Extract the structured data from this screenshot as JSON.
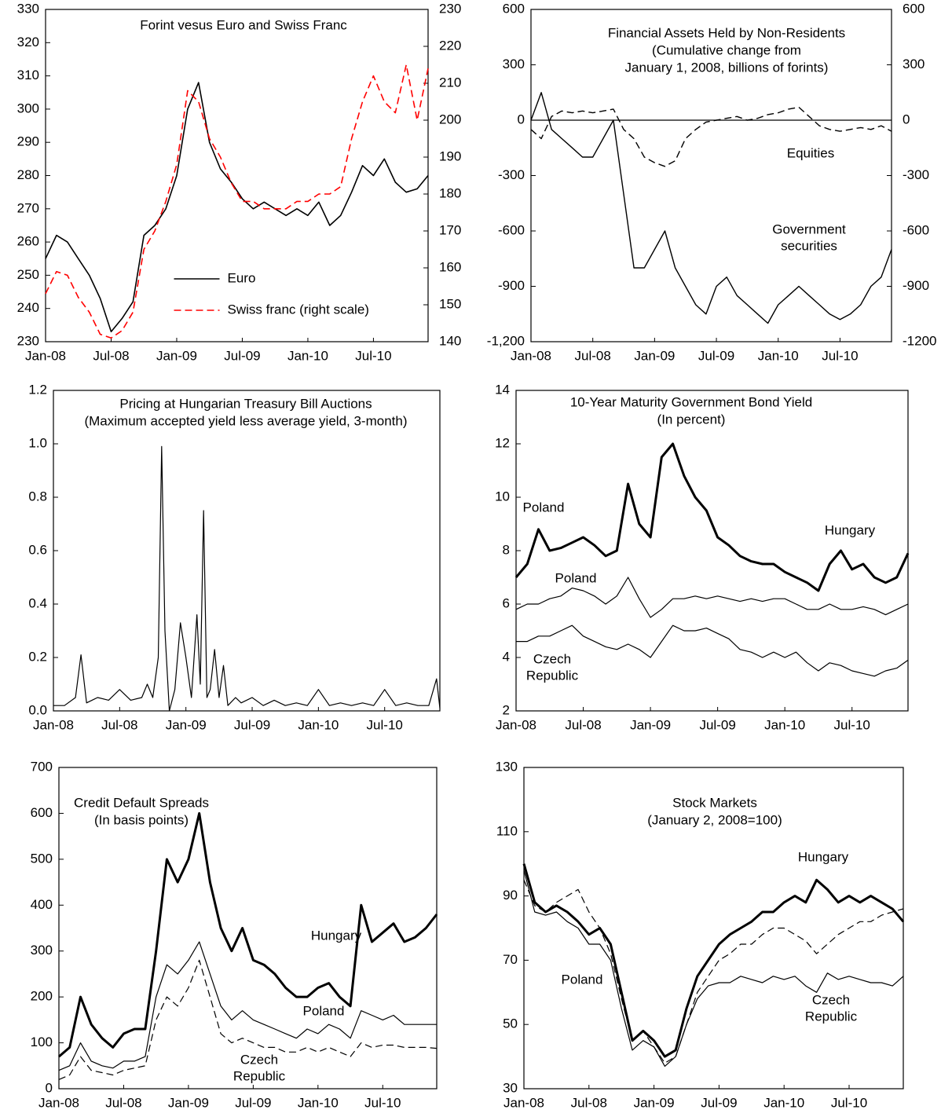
{
  "chart_data": [
    {
      "type": "line",
      "title": "Forint vesus Euro and Swiss Franc",
      "x": [
        0,
        1,
        2,
        3,
        4,
        5,
        6,
        7,
        8,
        9,
        10,
        11,
        12,
        13,
        14,
        15,
        16,
        17,
        18,
        19,
        20,
        21,
        22,
        23,
        24,
        25,
        26,
        27,
        28,
        29,
        30,
        31,
        32,
        33,
        34,
        35
      ],
      "xlim": [
        0,
        35
      ],
      "xticks": [
        {
          "value": 0,
          "label": "Jan-08"
        },
        {
          "value": 6,
          "label": "Jul-08"
        },
        {
          "value": 12,
          "label": "Jan-09"
        },
        {
          "value": 18,
          "label": "Jul-09"
        },
        {
          "value": 24,
          "label": "Jan-10"
        },
        {
          "value": 30,
          "label": "Jul-10"
        }
      ],
      "ylim": [
        230,
        330
      ],
      "yticks": [
        230,
        240,
        250,
        260,
        270,
        280,
        290,
        300,
        310,
        320,
        330
      ],
      "y2lim": [
        140,
        230
      ],
      "y2ticks": [
        140,
        150,
        160,
        170,
        180,
        190,
        200,
        210,
        220,
        230
      ],
      "legend": "lower center",
      "series": [
        {
          "name": "Euro",
          "color": "#000000",
          "width": 1.6,
          "dashed": false,
          "values": [
            255,
            262,
            260,
            255,
            250,
            243,
            233,
            237,
            242,
            262,
            265,
            270,
            280,
            300,
            308,
            290,
            282,
            278,
            273,
            270,
            272,
            270,
            268,
            270,
            268,
            272,
            265,
            268,
            275,
            283,
            280,
            285,
            278,
            275,
            276,
            280
          ]
        },
        {
          "name": "Swiss franc (right scale)",
          "color": "#ff0000",
          "width": 1.6,
          "dashed": true,
          "axis": "y2",
          "values": [
            153,
            159,
            158,
            152,
            148,
            142,
            141,
            143,
            148,
            165,
            170,
            178,
            188,
            208,
            205,
            195,
            190,
            183,
            178,
            178,
            176,
            176,
            176,
            178,
            178,
            180,
            180,
            182,
            195,
            205,
            212,
            205,
            202,
            215,
            200,
            214
          ]
        }
      ]
    },
    {
      "type": "line",
      "title": "Financial Assets Held by Non-Residents",
      "subtitle": [
        "(Cumulative change from",
        "January 1, 2008, billions of forints)"
      ],
      "x": [
        0,
        1,
        2,
        3,
        4,
        5,
        6,
        7,
        8,
        9,
        10,
        11,
        12,
        13,
        14,
        15,
        16,
        17,
        18,
        19,
        20,
        21,
        22,
        23,
        24,
        25,
        26,
        27,
        28,
        29,
        30,
        31,
        32,
        33,
        34,
        35
      ],
      "xlim": [
        0,
        35
      ],
      "xticks": [
        {
          "value": 0,
          "label": "Jan-08"
        },
        {
          "value": 6,
          "label": "Jul-08"
        },
        {
          "value": 12,
          "label": "Jan-09"
        },
        {
          "value": 18,
          "label": "Jul-09"
        },
        {
          "value": 24,
          "label": "Jan-10"
        },
        {
          "value": 30,
          "label": "Jul-10"
        }
      ],
      "ylim": [
        -1200,
        600
      ],
      "yticks": [
        {
          "value": -1200,
          "label": "-1,200"
        },
        -900,
        -600,
        -300,
        0,
        300,
        600
      ],
      "y2lim": [
        -1200,
        600
      ],
      "y2ticks": [
        -1200,
        -900,
        -600,
        -300,
        0,
        300,
        600
      ],
      "zero_line": true,
      "annotations": [
        [
          "Equities"
        ],
        [
          "Government",
          "securities"
        ]
      ],
      "series": [
        {
          "color": "#000000",
          "width": 1.4,
          "dashed": true,
          "values": [
            -50,
            -100,
            20,
            50,
            40,
            50,
            40,
            50,
            60,
            -50,
            -100,
            -200,
            -230,
            -250,
            -220,
            -100,
            -50,
            -10,
            0,
            10,
            20,
            0,
            10,
            30,
            40,
            60,
            70,
            20,
            -30,
            -50,
            -60,
            -50,
            -40,
            -50,
            -30,
            -60
          ]
        },
        {
          "color": "#000000",
          "width": 1.4,
          "dashed": false,
          "values": [
            0,
            150,
            -50,
            -100,
            -150,
            -200,
            -200,
            -100,
            0,
            -400,
            -800,
            -800,
            -700,
            -600,
            -800,
            -900,
            -1000,
            -1050,
            -900,
            -850,
            -950,
            -1000,
            -1050,
            -1100,
            -1000,
            -950,
            -900,
            -950,
            -1000,
            -1050,
            -1080,
            -1050,
            -1000,
            -900,
            -850,
            -700
          ]
        }
      ]
    },
    {
      "type": "line",
      "title": "Pricing at Hungarian Treasury Bill Auctions",
      "subtitle": [
        "(Maximum accepted yield less average yield, 3-month)"
      ],
      "x": [
        0,
        1,
        2,
        2.5,
        3,
        4,
        5,
        6,
        7,
        8,
        8.5,
        9,
        9.5,
        9.8,
        10.1,
        10.5,
        11,
        11.5,
        12,
        12.5,
        13,
        13.3,
        13.6,
        13.9,
        14.2,
        14.6,
        15,
        15.4,
        15.8,
        16.5,
        17,
        18,
        19,
        20,
        21,
        22,
        23,
        24,
        25,
        26,
        27,
        28,
        29,
        30,
        31,
        32,
        33,
        34,
        34.7,
        35
      ],
      "xlim": [
        0,
        35
      ],
      "xticks": [
        {
          "value": 0,
          "label": "Jan-08"
        },
        {
          "value": 6,
          "label": "Jul-08"
        },
        {
          "value": 12,
          "label": "Jan-09"
        },
        {
          "value": 18,
          "label": "Jul-09"
        },
        {
          "value": 24,
          "label": "Jan-10"
        },
        {
          "value": 30,
          "label": "Jul-10"
        }
      ],
      "ylim": [
        0,
        1.2
      ],
      "yticks": [
        {
          "value": 0,
          "label": "0.0"
        },
        0.2,
        0.4,
        0.6,
        0.8,
        {
          "value": 1,
          "label": "1.0"
        },
        1.2
      ],
      "series": [
        {
          "color": "#000000",
          "width": 1.2,
          "dashed": false,
          "values": [
            0.02,
            0.02,
            0.05,
            0.21,
            0.03,
            0.05,
            0.04,
            0.08,
            0.04,
            0.05,
            0.1,
            0.05,
            0.2,
            0.99,
            0.3,
            0.0,
            0.08,
            0.33,
            0.2,
            0.05,
            0.36,
            0.1,
            0.75,
            0.05,
            0.08,
            0.23,
            0.05,
            0.17,
            0.02,
            0.05,
            0.03,
            0.05,
            0.02,
            0.04,
            0.02,
            0.03,
            0.02,
            0.08,
            0.02,
            0.03,
            0.02,
            0.03,
            0.02,
            0.08,
            0.02,
            0.03,
            0.02,
            0.02,
            0.12,
            0.01
          ]
        }
      ]
    },
    {
      "type": "line",
      "title": "10-Year Maturity Government Bond Yield",
      "subtitle": [
        "(In percent)"
      ],
      "x": [
        0,
        1,
        2,
        3,
        4,
        5,
        6,
        7,
        8,
        9,
        10,
        11,
        12,
        13,
        14,
        15,
        16,
        17,
        18,
        19,
        20,
        21,
        22,
        23,
        24,
        25,
        26,
        27,
        28,
        29,
        30,
        31,
        32,
        33,
        34,
        35
      ],
      "xlim": [
        0,
        35
      ],
      "xticks": [
        {
          "value": 0,
          "label": "Jan-08"
        },
        {
          "value": 6,
          "label": "Jul-08"
        },
        {
          "value": 12,
          "label": "Jan-09"
        },
        {
          "value": 18,
          "label": "Jul-09"
        },
        {
          "value": 24,
          "label": "Jan-10"
        },
        {
          "value": 30,
          "label": "Jul-10"
        }
      ],
      "ylim": [
        2,
        14
      ],
      "yticks": [
        2,
        4,
        6,
        8,
        10,
        12,
        14
      ],
      "annotations": [
        [
          "Poland"
        ],
        [
          "Hungary"
        ],
        [
          "Poland"
        ],
        [
          "Czech",
          "Republic"
        ]
      ],
      "series": [
        {
          "color": "#000000",
          "width": 3,
          "dashed": false,
          "values": [
            7.0,
            7.5,
            8.8,
            8.0,
            8.1,
            8.3,
            8.5,
            8.2,
            7.8,
            8.0,
            10.5,
            9.0,
            8.5,
            11.5,
            12.0,
            10.8,
            10.0,
            9.5,
            8.5,
            8.2,
            7.8,
            7.6,
            7.5,
            7.5,
            7.2,
            7.0,
            6.8,
            6.5,
            7.5,
            8.0,
            7.3,
            7.5,
            7.0,
            6.8,
            7.0,
            7.9
          ]
        },
        {
          "color": "#000000",
          "width": 1.2,
          "dashed": false,
          "values": [
            5.8,
            6.0,
            6.0,
            6.2,
            6.3,
            6.6,
            6.5,
            6.3,
            6.0,
            6.3,
            7.0,
            6.2,
            5.5,
            5.8,
            6.2,
            6.2,
            6.3,
            6.2,
            6.3,
            6.2,
            6.1,
            6.2,
            6.1,
            6.2,
            6.2,
            6.0,
            5.8,
            5.8,
            6.0,
            5.8,
            5.8,
            5.9,
            5.8,
            5.6,
            5.8,
            6.0
          ]
        },
        {
          "color": "#000000",
          "width": 1.2,
          "dashed": false,
          "values": [
            4.6,
            4.6,
            4.8,
            4.8,
            5.0,
            5.2,
            4.8,
            4.6,
            4.4,
            4.3,
            4.5,
            4.3,
            4.0,
            4.6,
            5.2,
            5.0,
            5.0,
            5.1,
            4.9,
            4.7,
            4.3,
            4.2,
            4.0,
            4.2,
            4.0,
            4.2,
            3.8,
            3.5,
            3.8,
            3.7,
            3.5,
            3.4,
            3.3,
            3.5,
            3.6,
            3.9
          ]
        }
      ]
    },
    {
      "type": "line",
      "title": "Credit Default Spreads",
      "subtitle": [
        "(In basis points)"
      ],
      "x": [
        0,
        1,
        2,
        3,
        4,
        5,
        6,
        7,
        8,
        9,
        10,
        11,
        12,
        13,
        14,
        15,
        16,
        17,
        18,
        19,
        20,
        21,
        22,
        23,
        24,
        25,
        26,
        27,
        28,
        29,
        30,
        31,
        32,
        33,
        34,
        35
      ],
      "xlim": [
        0,
        35
      ],
      "xticks": [
        {
          "value": 0,
          "label": "Jan-08"
        },
        {
          "value": 6,
          "label": "Jul-08"
        },
        {
          "value": 12,
          "label": "Jan-09"
        },
        {
          "value": 18,
          "label": "Jul-09"
        },
        {
          "value": 24,
          "label": "Jan-10"
        },
        {
          "value": 30,
          "label": "Jul-10"
        }
      ],
      "ylim": [
        0,
        700
      ],
      "yticks": [
        0,
        100,
        200,
        300,
        400,
        500,
        600,
        700
      ],
      "annotations": [
        [
          "Hungary"
        ],
        [
          "Poland"
        ],
        [
          "Czech",
          "Republic"
        ]
      ],
      "series": [
        {
          "color": "#000000",
          "width": 3,
          "dashed": false,
          "values": [
            70,
            90,
            200,
            140,
            110,
            90,
            120,
            130,
            130,
            300,
            500,
            450,
            500,
            600,
            450,
            350,
            300,
            350,
            280,
            270,
            250,
            220,
            200,
            200,
            220,
            230,
            200,
            180,
            400,
            320,
            340,
            360,
            320,
            330,
            350,
            380
          ]
        },
        {
          "color": "#000000",
          "width": 1.2,
          "dashed": false,
          "values": [
            40,
            50,
            100,
            60,
            50,
            45,
            60,
            60,
            70,
            200,
            270,
            250,
            280,
            320,
            250,
            180,
            150,
            170,
            150,
            140,
            130,
            120,
            110,
            130,
            120,
            140,
            130,
            110,
            170,
            160,
            150,
            160,
            140,
            140,
            140,
            140
          ]
        },
        {
          "color": "#000000",
          "width": 1.2,
          "dashed": true,
          "values": [
            20,
            30,
            70,
            40,
            35,
            30,
            40,
            45,
            50,
            150,
            200,
            180,
            220,
            280,
            200,
            120,
            100,
            110,
            100,
            90,
            90,
            80,
            80,
            90,
            80,
            90,
            80,
            70,
            100,
            90,
            95,
            95,
            90,
            90,
            90,
            88
          ]
        }
      ]
    },
    {
      "type": "line",
      "title": "Stock Markets",
      "subtitle": [
        "(January 2, 2008=100)"
      ],
      "x": [
        0,
        1,
        2,
        3,
        4,
        5,
        6,
        7,
        8,
        9,
        10,
        11,
        12,
        13,
        14,
        15,
        16,
        17,
        18,
        19,
        20,
        21,
        22,
        23,
        24,
        25,
        26,
        27,
        28,
        29,
        30,
        31,
        32,
        33,
        34,
        35
      ],
      "xlim": [
        0,
        35
      ],
      "xticks": [
        {
          "value": 0,
          "label": "Jan-08"
        },
        {
          "value": 6,
          "label": "Jul-08"
        },
        {
          "value": 12,
          "label": "Jan-09"
        },
        {
          "value": 18,
          "label": "Jul-09"
        },
        {
          "value": 24,
          "label": "Jan-10"
        },
        {
          "value": 30,
          "label": "Jul-10"
        }
      ],
      "ylim": [
        30,
        130
      ],
      "yticks": [
        30,
        50,
        70,
        90,
        110,
        130
      ],
      "annotations": [
        [
          "Hungary"
        ],
        [
          "Poland"
        ],
        [
          "Czech",
          "Republic"
        ]
      ],
      "series": [
        {
          "color": "#000000",
          "width": 3,
          "dashed": false,
          "values": [
            100,
            88,
            85,
            87,
            85,
            82,
            78,
            80,
            75,
            60,
            45,
            48,
            45,
            40,
            42,
            55,
            65,
            70,
            75,
            78,
            80,
            82,
            85,
            85,
            88,
            90,
            88,
            95,
            92,
            88,
            90,
            88,
            90,
            88,
            86,
            82
          ]
        },
        {
          "color": "#000000",
          "width": 1.2,
          "dashed": true,
          "values": [
            95,
            87,
            85,
            88,
            90,
            92,
            85,
            80,
            72,
            58,
            45,
            48,
            43,
            38,
            40,
            50,
            60,
            65,
            70,
            72,
            75,
            75,
            78,
            80,
            80,
            78,
            76,
            72,
            75,
            78,
            80,
            82,
            82,
            84,
            85,
            86
          ]
        },
        {
          "color": "#000000",
          "width": 1.2,
          "dashed": false,
          "values": [
            98,
            85,
            84,
            85,
            82,
            80,
            75,
            75,
            70,
            55,
            42,
            45,
            43,
            37,
            40,
            50,
            58,
            62,
            63,
            63,
            65,
            64,
            63,
            65,
            64,
            65,
            62,
            60,
            66,
            64,
            65,
            64,
            63,
            63,
            62,
            65
          ]
        }
      ]
    }
  ]
}
